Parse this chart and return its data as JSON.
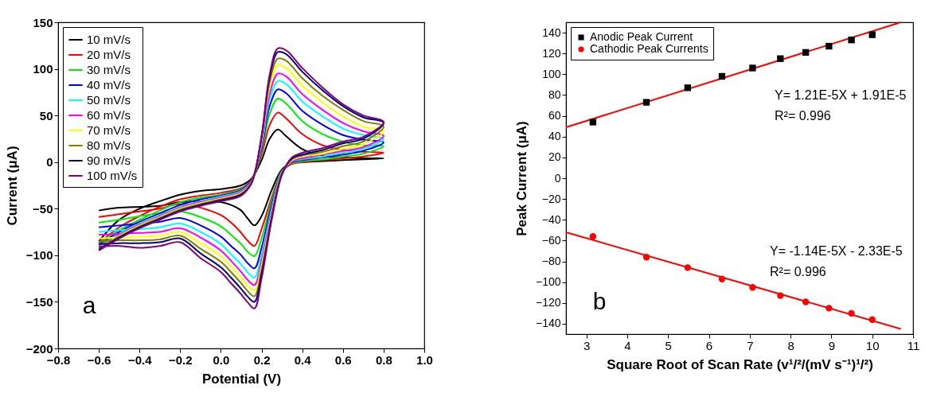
{
  "chart_data": [
    {
      "type": "line",
      "xlabel": "Potential (V)",
      "ylabel": "Current (μA)",
      "xlim": [
        -0.8,
        1.0
      ],
      "xticks": [
        -0.8,
        -0.6,
        -0.4,
        -0.2,
        {
          "value": 0,
          "label": "0.0"
        },
        0.2,
        0.4,
        0.6,
        0.8,
        {
          "value": 1,
          "label": "1.0"
        }
      ],
      "ylim": [
        -200,
        150
      ],
      "yticks": [
        -200,
        -150,
        -100,
        -50,
        0,
        50,
        100,
        150
      ],
      "legend": "top left",
      "grid": false,
      "line_style": "solid",
      "annotations": [
        "a"
      ],
      "series": [
        {
          "name": "10 mV/s",
          "color": "#000000",
          "x": [
            -0.6,
            -0.5,
            -0.4,
            -0.3,
            -0.2,
            -0.1,
            0,
            0.1,
            0.15,
            0.2,
            0.24,
            0.28,
            0.32,
            0.4,
            0.5,
            0.6,
            0.7,
            0.8,
            0.7,
            0.6,
            0.5,
            0.4,
            0.35,
            0.3,
            0.25,
            0.2,
            0.165,
            0.13,
            0.1,
            0.05,
            0,
            -0.1,
            -0.2,
            -0.3,
            -0.4,
            -0.5,
            -0.6
          ],
          "values": [
            -85,
            -62,
            -50,
            -42,
            -35,
            -31,
            -29,
            -25,
            -18,
            2,
            25,
            35,
            28,
            14,
            7,
            5,
            4,
            4,
            3,
            2,
            1,
            0,
            -1,
            -8,
            -30,
            -58,
            -68,
            -60,
            -52,
            -46,
            -43,
            -42,
            -43,
            -47,
            -48,
            -49,
            -52
          ]
        },
        {
          "name": "20 mV/s",
          "color": "#ff0000",
          "x": [
            -0.6,
            -0.5,
            -0.4,
            -0.3,
            -0.2,
            -0.1,
            0,
            0.1,
            0.15,
            0.2,
            0.24,
            0.28,
            0.32,
            0.4,
            0.5,
            0.6,
            0.7,
            0.8,
            0.7,
            0.6,
            0.5,
            0.4,
            0.35,
            0.3,
            0.25,
            0.2,
            0.165,
            0.13,
            0.1,
            0.05,
            0,
            -0.1,
            -0.2,
            -0.3,
            -0.4,
            -0.5,
            -0.6
          ],
          "values": [
            -87,
            -70,
            -58,
            -48,
            -40,
            -36,
            -33,
            -28,
            -19,
            8,
            40,
            53,
            47,
            30,
            18,
            13,
            11,
            10,
            6,
            4,
            2,
            0,
            -2,
            -10,
            -38,
            -72,
            -90,
            -84,
            -76,
            -65,
            -57,
            -49,
            -45,
            -50,
            -53,
            -56,
            -59
          ]
        },
        {
          "name": "30 mV/s",
          "color": "#00ee00",
          "x": [
            -0.6,
            -0.5,
            -0.4,
            -0.3,
            -0.2,
            -0.1,
            0,
            0.1,
            0.15,
            0.2,
            0.24,
            0.28,
            0.32,
            0.4,
            0.5,
            0.6,
            0.7,
            0.8,
            0.7,
            0.6,
            0.5,
            0.4,
            0.35,
            0.3,
            0.25,
            0.2,
            0.165,
            0.13,
            0.1,
            0.05,
            0,
            -0.1,
            -0.2,
            -0.3,
            -0.4,
            -0.5,
            -0.6
          ],
          "values": [
            -88,
            -73,
            -62,
            -52,
            -43,
            -38,
            -35,
            -29,
            -20,
            12,
            52,
            68,
            63,
            44,
            30,
            22,
            18,
            17,
            9,
            6,
            3,
            1,
            -1,
            -10,
            -42,
            -82,
            -101,
            -96,
            -88,
            -78,
            -69,
            -59,
            -53,
            -55,
            -58,
            -62,
            -65
          ]
        },
        {
          "name": "40 mV/s",
          "color": "#0000ff",
          "x": [
            -0.6,
            -0.5,
            -0.4,
            -0.3,
            -0.2,
            -0.1,
            0,
            0.1,
            0.15,
            0.2,
            0.24,
            0.28,
            0.32,
            0.4,
            0.5,
            0.6,
            0.7,
            0.8,
            0.7,
            0.6,
            0.5,
            0.4,
            0.35,
            0.3,
            0.25,
            0.2,
            0.165,
            0.13,
            0.1,
            0.05,
            0,
            -0.1,
            -0.2,
            -0.3,
            -0.4,
            -0.5,
            -0.6
          ],
          "values": [
            -89,
            -75,
            -64,
            -55,
            -46,
            -40,
            -36,
            -30,
            -20,
            15,
            60,
            78,
            74,
            55,
            40,
            29,
            24,
            21,
            12,
            8,
            5,
            2,
            0,
            -11,
            -46,
            -92,
            -114,
            -108,
            -100,
            -90,
            -80,
            -68,
            -60,
            -64,
            -66,
            -68,
            -70
          ]
        },
        {
          "name": "50 mV/s",
          "color": "#00ffff",
          "x": [
            -0.6,
            -0.5,
            -0.4,
            -0.3,
            -0.2,
            -0.1,
            0,
            0.1,
            0.15,
            0.2,
            0.24,
            0.28,
            0.32,
            0.4,
            0.5,
            0.6,
            0.7,
            0.8,
            0.7,
            0.6,
            0.5,
            0.4,
            0.35,
            0.3,
            0.25,
            0.2,
            0.165,
            0.13,
            0.1,
            0.05,
            0,
            -0.1,
            -0.2,
            -0.3,
            -0.4,
            -0.5,
            -0.6
          ],
          "values": [
            -90,
            -77,
            -66,
            -57,
            -48,
            -42,
            -37,
            -31,
            -21,
            18,
            67,
            87,
            84,
            65,
            49,
            36,
            29,
            25,
            14,
            10,
            6,
            3,
            1,
            -11,
            -50,
            -100,
            -124,
            -118,
            -110,
            -99,
            -88,
            -75,
            -66,
            -70,
            -72,
            -73,
            -75
          ]
        },
        {
          "name": "60 mV/s",
          "color": "#ff00ff",
          "x": [
            -0.6,
            -0.5,
            -0.4,
            -0.3,
            -0.2,
            -0.1,
            0,
            0.1,
            0.15,
            0.2,
            0.24,
            0.28,
            0.32,
            0.4,
            0.5,
            0.6,
            0.7,
            0.8,
            0.7,
            0.6,
            0.5,
            0.4,
            0.35,
            0.3,
            0.25,
            0.2,
            0.165,
            0.13,
            0.1,
            0.05,
            0,
            -0.1,
            -0.2,
            -0.3,
            -0.4,
            -0.5,
            -0.6
          ],
          "values": [
            -91,
            -78,
            -67,
            -58,
            -49,
            -43,
            -38,
            -32,
            -21,
            20,
            73,
            95,
            92,
            73,
            56,
            42,
            33,
            28,
            16,
            12,
            8,
            4,
            1,
            -12,
            -53,
            -106,
            -132,
            -126,
            -118,
            -106,
            -95,
            -81,
            -71,
            -75,
            -76,
            -77,
            -78
          ]
        },
        {
          "name": "70 mV/s",
          "color": "#ffff00",
          "x": [
            -0.6,
            -0.5,
            -0.4,
            -0.3,
            -0.2,
            -0.1,
            0,
            0.1,
            0.15,
            0.2,
            0.24,
            0.28,
            0.32,
            0.4,
            0.5,
            0.6,
            0.7,
            0.8,
            0.7,
            0.6,
            0.5,
            0.4,
            0.35,
            0.3,
            0.25,
            0.2,
            0.165,
            0.13,
            0.1,
            0.05,
            0,
            -0.1,
            -0.2,
            -0.3,
            -0.4,
            -0.5,
            -0.6
          ],
          "values": [
            -92,
            -79,
            -68,
            -59,
            -50,
            -44,
            -39,
            -33,
            -22,
            23,
            80,
            104,
            101,
            82,
            64,
            49,
            38,
            33,
            19,
            14,
            9,
            6,
            2,
            -12,
            -56,
            -111,
            -138,
            -132,
            -124,
            -112,
            -101,
            -87,
            -75,
            -79,
            -80,
            -81,
            -82
          ]
        },
        {
          "name": "80 mV/s",
          "color": "#808000",
          "x": [
            -0.6,
            -0.5,
            -0.4,
            -0.3,
            -0.2,
            -0.1,
            0,
            0.1,
            0.15,
            0.2,
            0.24,
            0.28,
            0.32,
            0.4,
            0.5,
            0.6,
            0.7,
            0.8,
            0.7,
            0.6,
            0.5,
            0.4,
            0.35,
            0.3,
            0.25,
            0.2,
            0.165,
            0.13,
            0.1,
            0.05,
            0,
            -0.1,
            -0.2,
            -0.3,
            -0.4,
            -0.5,
            -0.6
          ],
          "values": [
            -93,
            -80,
            -69,
            -60,
            -51,
            -45,
            -40,
            -34,
            -22,
            25,
            86,
            111,
            109,
            90,
            71,
            56,
            44,
            38,
            22,
            17,
            11,
            7,
            3,
            -13,
            -58,
            -116,
            -144,
            -138,
            -130,
            -118,
            -107,
            -93,
            -79,
            -83,
            -84,
            -84,
            -85
          ]
        },
        {
          "name": "90 mV/s",
          "color": "#000080",
          "x": [
            -0.6,
            -0.5,
            -0.4,
            -0.3,
            -0.2,
            -0.1,
            0,
            0.1,
            0.15,
            0.2,
            0.24,
            0.28,
            0.32,
            0.4,
            0.5,
            0.6,
            0.7,
            0.8,
            0.7,
            0.6,
            0.5,
            0.4,
            0.35,
            0.3,
            0.25,
            0.2,
            0.165,
            0.13,
            0.1,
            0.05,
            0,
            -0.1,
            -0.2,
            -0.3,
            -0.4,
            -0.5,
            -0.6
          ],
          "values": [
            -94,
            -81,
            -70,
            -61,
            -52,
            -46,
            -41,
            -35,
            -23,
            27,
            91,
            118,
            116,
            97,
            77,
            60,
            48,
            42,
            25,
            20,
            13,
            8,
            4,
            -13,
            -60,
            -120,
            -150,
            -144,
            -136,
            -124,
            -113,
            -98,
            -82,
            -86,
            -87,
            -87,
            -88
          ]
        },
        {
          "name": "100 mV/s",
          "color": "#800080",
          "x": [
            -0.6,
            -0.5,
            -0.4,
            -0.3,
            -0.2,
            -0.1,
            0,
            0.1,
            0.15,
            0.2,
            0.24,
            0.28,
            0.32,
            0.4,
            0.5,
            0.6,
            0.7,
            0.8,
            0.7,
            0.6,
            0.5,
            0.4,
            0.35,
            0.3,
            0.25,
            0.2,
            0.165,
            0.13,
            0.1,
            0.05,
            0,
            -0.1,
            -0.2,
            -0.3,
            -0.4,
            -0.5,
            -0.6
          ],
          "values": [
            -95,
            -82,
            -71,
            -62,
            -53,
            -47,
            -42,
            -36,
            -23,
            28,
            94,
            122,
            120,
            101,
            80,
            62,
            50,
            43,
            27,
            22,
            15,
            10,
            5,
            -14,
            -62,
            -125,
            -157,
            -150,
            -142,
            -130,
            -118,
            -103,
            -86,
            -90,
            -92,
            -90,
            -91
          ]
        }
      ]
    },
    {
      "type": "scatter",
      "xlabel": "Square Root of Scan Rate (v¹/²/(mV s⁻¹)¹/²)",
      "ylabel": "Peak Current (μA)",
      "xlim": [
        2.5,
        11
      ],
      "xticks": [
        3,
        4,
        5,
        6,
        7,
        8,
        9,
        10,
        11
      ],
      "ylim": [
        -150,
        150
      ],
      "yticks": [
        -140,
        -120,
        -100,
        -80,
        -60,
        -40,
        -20,
        0,
        20,
        40,
        60,
        80,
        100,
        120,
        140
      ],
      "legend": "top left",
      "grid": false,
      "line_style": "solid",
      "annotations": [
        "Y= 1.21E-5X + 1.91E-5",
        "R²= 0.996",
        "Y= -1.14E-5X - 2.33E-5",
        "R²= 0.996",
        "b"
      ],
      "series": [
        {
          "name": "Anodic Peak Current",
          "color": "#000000",
          "marker": "square",
          "x": [
            3.16,
            4.47,
            5.48,
            6.32,
            7.07,
            7.75,
            8.37,
            8.94,
            9.49,
            10.0
          ],
          "values": [
            54,
            73,
            87,
            98,
            106,
            115,
            121,
            127,
            133,
            138
          ]
        },
        {
          "name": "Cathodic Peak Currents",
          "color": "#ff0000",
          "marker": "circle",
          "x": [
            3.16,
            4.47,
            5.48,
            6.32,
            7.07,
            7.75,
            8.37,
            8.94,
            9.49,
            10.0
          ],
          "values": [
            -56,
            -76,
            -86,
            -97,
            -105,
            -113,
            -119,
            -125,
            -130,
            -136
          ]
        },
        {
          "type": "line",
          "color": "#ff0000",
          "x": [
            2.5,
            10.7
          ],
          "values": [
            49,
            150
          ]
        },
        {
          "type": "line",
          "color": "#ff0000",
          "x": [
            2.5,
            10.7
          ],
          "values": [
            -52,
            -145
          ]
        }
      ]
    }
  ]
}
